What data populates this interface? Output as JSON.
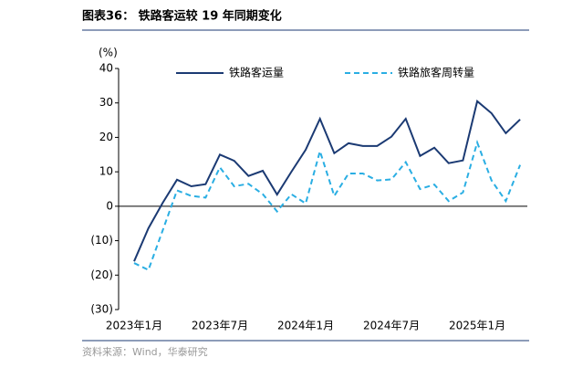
{
  "chart_data": {
    "type": "line",
    "title": "图表36：  铁路客运较 19 年同期变化",
    "y_label": "(%)",
    "source": "资料来源：Wind，华泰研究",
    "categories": [
      "2023年1月",
      null,
      null,
      null,
      null,
      null,
      "2023年7月",
      null,
      null,
      null,
      null,
      null,
      "2024年1月",
      null,
      null,
      null,
      null,
      null,
      "2024年7月",
      null,
      null,
      null,
      null,
      null,
      "2025年1月",
      null,
      null,
      null
    ],
    "series": [
      {
        "name": "铁路客运量",
        "color": "#1b3a73",
        "style": "solid",
        "values": [
          -16,
          -6.4,
          1,
          7.7,
          5.8,
          6.4,
          15,
          13.2,
          8.8,
          10.3,
          3.4,
          10,
          16.4,
          25.4,
          15.4,
          18.3,
          17.5,
          17.5,
          20.2,
          25.4,
          14.6,
          17,
          12.5,
          13.3,
          30.5,
          27,
          21.2,
          25.2
        ]
      },
      {
        "name": "铁路旅客周转量",
        "color": "#2aaee3",
        "style": "dashed",
        "values": [
          -16.5,
          -18.5,
          -7,
          4.6,
          3,
          2.5,
          11.3,
          5.8,
          6.5,
          3.5,
          -1.5,
          3.5,
          0.8,
          16,
          3,
          9.5,
          9.5,
          7.5,
          7.8,
          12.8,
          5,
          6.3,
          1.5,
          4,
          18.5,
          7.5,
          1.5,
          12
        ]
      }
    ],
    "ylim": [
      -30,
      40
    ],
    "yticks": [
      {
        "value": -30,
        "label": "(30)"
      },
      {
        "value": -20,
        "label": "(20)"
      },
      {
        "value": -10,
        "label": "(10)"
      },
      0,
      10,
      20,
      30,
      40
    ],
    "grid": false
  }
}
